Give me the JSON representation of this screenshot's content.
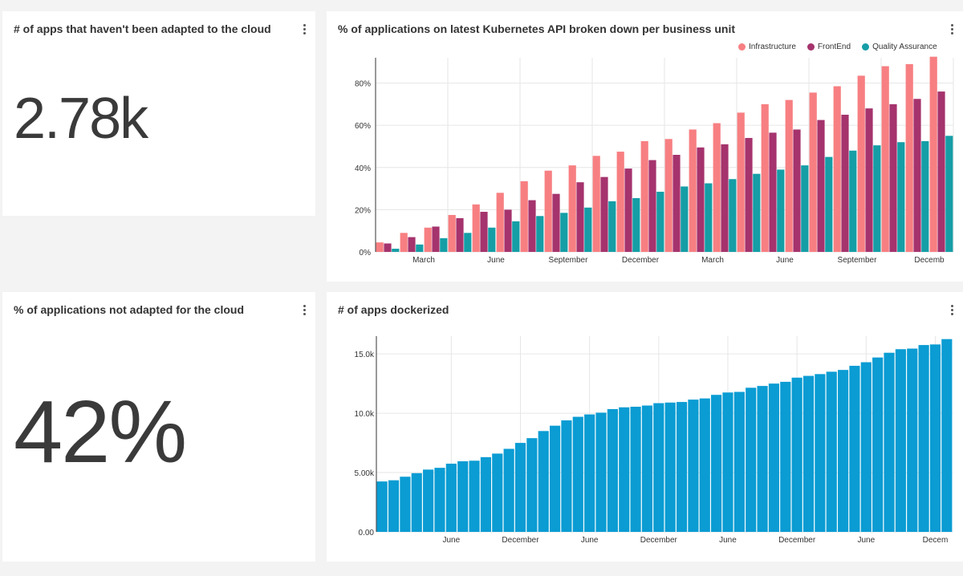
{
  "cards": {
    "not_adapted_count": {
      "title": "# of apps that haven't been adapted to the cloud",
      "value": "2.78k"
    },
    "k8s_api": {
      "title": "% of applications on latest Kubernetes API broken down per business unit"
    },
    "not_adapted_pct": {
      "title": "% of applications not adapted for the cloud",
      "value": "42%"
    },
    "dockerized": {
      "title": "# of apps dockerized"
    }
  },
  "colors": {
    "infrastructure": "#f77f82",
    "frontend": "#a5336d",
    "qa": "#159ea6",
    "dockerized": "#0a9cd3"
  },
  "icons": {
    "menu": "more-vertical-icon"
  },
  "chart_data": [
    {
      "type": "bar",
      "title": "% of applications on latest Kubernetes API broken down per business unit",
      "x_tick_labels": [
        "March",
        "June",
        "September",
        "December",
        "March",
        "June",
        "September",
        "Decemb"
      ],
      "y_tick_labels": [
        "0%",
        "20%",
        "40%",
        "60%",
        "80%"
      ],
      "ylim": [
        0,
        92
      ],
      "grid": true,
      "legend_position": "top-right",
      "series": [
        {
          "name": "Infrastructure",
          "values": [
            4.5,
            9,
            11.5,
            17.5,
            22.5,
            28,
            33.5,
            38.5,
            41,
            45.5,
            47.5,
            52.5,
            53.5,
            58,
            61,
            66,
            70,
            72,
            75.5,
            78.5,
            83.5,
            88,
            89,
            92.5
          ]
        },
        {
          "name": "FrontEnd",
          "values": [
            4,
            7,
            12,
            16,
            19,
            20,
            24.5,
            27.5,
            33,
            35.5,
            39.5,
            43.5,
            46,
            49.5,
            51,
            54,
            56.5,
            58,
            62.5,
            65,
            68,
            70,
            72.5,
            76
          ]
        },
        {
          "name": "Quality Assurance",
          "values": [
            1.5,
            3.5,
            6.5,
            9,
            11.5,
            14.5,
            17,
            18.5,
            21,
            24,
            25.5,
            28.5,
            31,
            32.5,
            34.5,
            37,
            39,
            41,
            45,
            48,
            50.5,
            52,
            52.5,
            55
          ]
        }
      ]
    },
    {
      "type": "bar",
      "title": "# of apps dockerized",
      "x_tick_labels": [
        "June",
        "December",
        "June",
        "December",
        "June",
        "December",
        "June",
        "Decem"
      ],
      "y_tick_labels": [
        "0.00",
        "5.00k",
        "10.0k",
        "15.0k"
      ],
      "ylim": [
        0,
        16500
      ],
      "grid": true,
      "values": [
        4250,
        4350,
        4650,
        4950,
        5250,
        5400,
        5750,
        5950,
        6000,
        6300,
        6600,
        7000,
        7500,
        7900,
        8500,
        8950,
        9400,
        9700,
        9900,
        10050,
        10350,
        10500,
        10550,
        10650,
        10850,
        10900,
        10950,
        11150,
        11250,
        11550,
        11750,
        11800,
        12150,
        12300,
        12500,
        12650,
        13000,
        13150,
        13300,
        13500,
        13650,
        14000,
        14300,
        14700,
        15100,
        15400,
        15450,
        15750,
        15800,
        16250
      ]
    }
  ]
}
